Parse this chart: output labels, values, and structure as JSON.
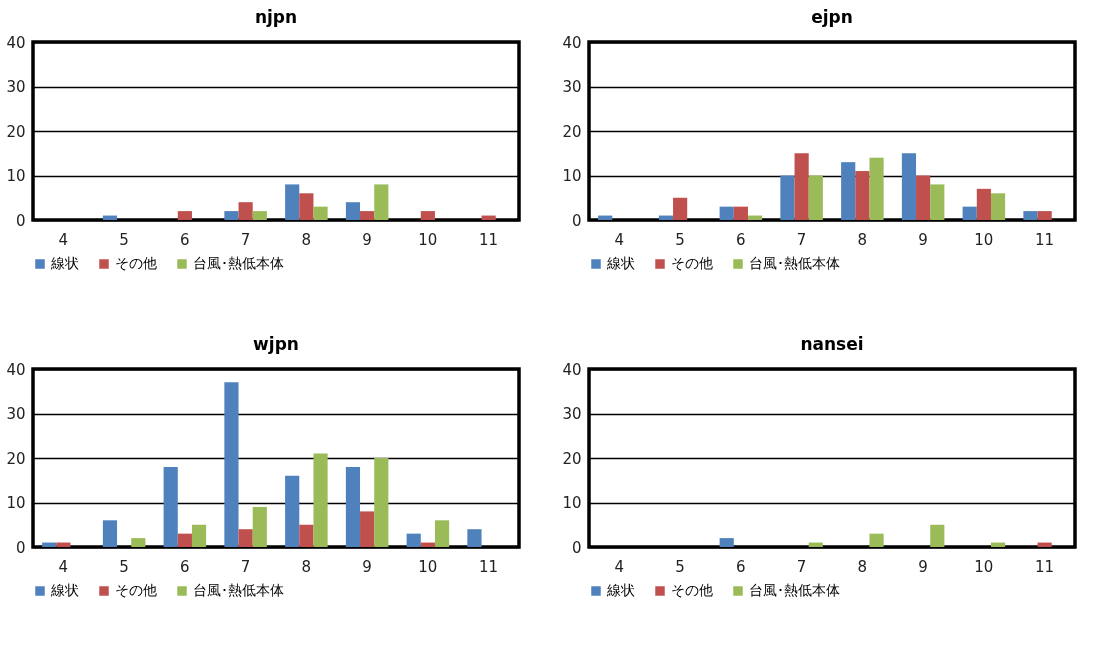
{
  "chart_data": [
    {
      "type": "bar",
      "title": "njpn",
      "categories": [
        "4",
        "5",
        "6",
        "7",
        "8",
        "9",
        "10",
        "11"
      ],
      "ylim": [
        0,
        40
      ],
      "yticks": [
        0,
        10,
        20,
        30,
        40
      ],
      "grid": "y",
      "legend": "bottom",
      "series": [
        {
          "name": "線状",
          "color": "#4f81bd",
          "values": [
            0,
            1,
            0,
            2,
            8,
            4,
            0,
            0
          ]
        },
        {
          "name": "その他",
          "color": "#c0504d",
          "values": [
            0,
            0,
            2,
            4,
            6,
            2,
            2,
            1
          ]
        },
        {
          "name": "台風･熱低本体",
          "color": "#9bbb59",
          "values": [
            0,
            0,
            0,
            2,
            3,
            8,
            0,
            0
          ]
        }
      ]
    },
    {
      "type": "bar",
      "title": "ejpn",
      "categories": [
        "4",
        "5",
        "6",
        "7",
        "8",
        "9",
        "10",
        "11"
      ],
      "ylim": [
        0,
        40
      ],
      "yticks": [
        0,
        10,
        20,
        30,
        40
      ],
      "grid": "y",
      "legend": "bottom",
      "series": [
        {
          "name": "線状",
          "color": "#4f81bd",
          "values": [
            1,
            1,
            3,
            10,
            13,
            15,
            3,
            2
          ]
        },
        {
          "name": "その他",
          "color": "#c0504d",
          "values": [
            0,
            5,
            3,
            15,
            11,
            10,
            7,
            2
          ]
        },
        {
          "name": "台風･熱低本体",
          "color": "#9bbb59",
          "values": [
            0,
            0,
            1,
            10,
            14,
            8,
            6,
            0
          ]
        }
      ]
    },
    {
      "type": "bar",
      "title": "wjpn",
      "categories": [
        "4",
        "5",
        "6",
        "7",
        "8",
        "9",
        "10",
        "11"
      ],
      "ylim": [
        0,
        40
      ],
      "yticks": [
        0,
        10,
        20,
        30,
        40
      ],
      "grid": "y",
      "legend": "bottom",
      "series": [
        {
          "name": "線状",
          "color": "#4f81bd",
          "values": [
            1,
            6,
            18,
            37,
            16,
            18,
            3,
            4
          ]
        },
        {
          "name": "その他",
          "color": "#c0504d",
          "values": [
            1,
            0,
            3,
            4,
            5,
            8,
            1,
            0
          ]
        },
        {
          "name": "台風･熱低本体",
          "color": "#9bbb59",
          "values": [
            0,
            2,
            5,
            9,
            21,
            20,
            6,
            0
          ]
        }
      ]
    },
    {
      "type": "bar",
      "title": "nansei",
      "categories": [
        "4",
        "5",
        "6",
        "7",
        "8",
        "9",
        "10",
        "11"
      ],
      "ylim": [
        0,
        40
      ],
      "yticks": [
        0,
        10,
        20,
        30,
        40
      ],
      "grid": "y",
      "legend": "bottom",
      "series": [
        {
          "name": "線状",
          "color": "#4f81bd",
          "values": [
            0,
            0,
            2,
            0,
            0,
            0,
            0,
            0
          ]
        },
        {
          "name": "その他",
          "color": "#c0504d",
          "values": [
            0,
            0,
            0,
            0,
            0,
            0,
            0,
            1
          ]
        },
        {
          "name": "台風･熱低本体",
          "color": "#9bbb59",
          "values": [
            0,
            0,
            0,
            1,
            3,
            5,
            1,
            0
          ]
        }
      ]
    }
  ]
}
